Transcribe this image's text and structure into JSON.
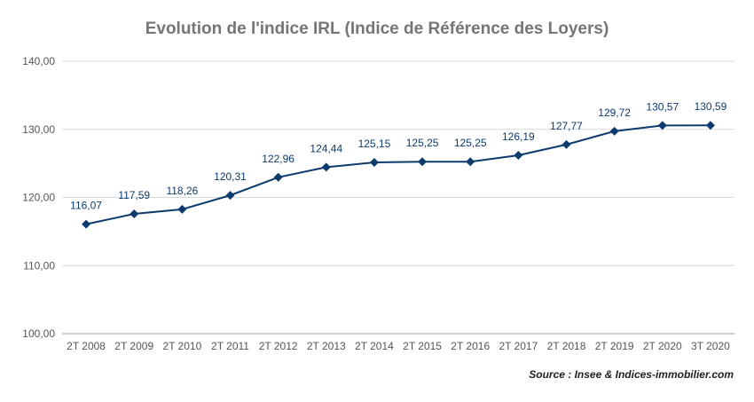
{
  "chart_data": {
    "type": "line",
    "title": "Evolution de l'indice IRL (Indice de Référence des Loyers)",
    "xlabel": "",
    "ylabel": "",
    "categories": [
      "2T 2008",
      "2T 2009",
      "2T 2010",
      "2T 2011",
      "2T 2012",
      "2T 2013",
      "2T 2014",
      "2T 2015",
      "2T 2016",
      "2T 2017",
      "2T 2018",
      "2T 2019",
      "2T 2020",
      "3T 2020"
    ],
    "series": [
      {
        "values": [
          116.07,
          117.59,
          118.26,
          120.31,
          122.96,
          124.44,
          125.15,
          125.25,
          125.25,
          126.19,
          127.77,
          129.72,
          130.57,
          130.59
        ],
        "data_labels": [
          "116,07",
          "117,59",
          "118,26",
          "120,31",
          "122,96",
          "124,44",
          "125,15",
          "125,25",
          "125,25",
          "126,19",
          "127,77",
          "129,72",
          "130,57",
          "130,59"
        ],
        "color": "#0d3b6e",
        "marker": "diamond"
      }
    ],
    "ylim": [
      100,
      140
    ],
    "yticks": [
      100,
      110,
      120,
      130,
      140
    ],
    "ytick_labels": [
      "100,00",
      "110,00",
      "120,00",
      "130,00",
      "140,00"
    ],
    "grid": true,
    "legend": "none",
    "colors": {
      "line": "#0d3b6e",
      "label": "#0d3b6e",
      "grid": "#d9d9d9",
      "axis_text": "#555555",
      "title": "#757575"
    }
  },
  "source": "Source : Insee & Indices-immobilier.com"
}
